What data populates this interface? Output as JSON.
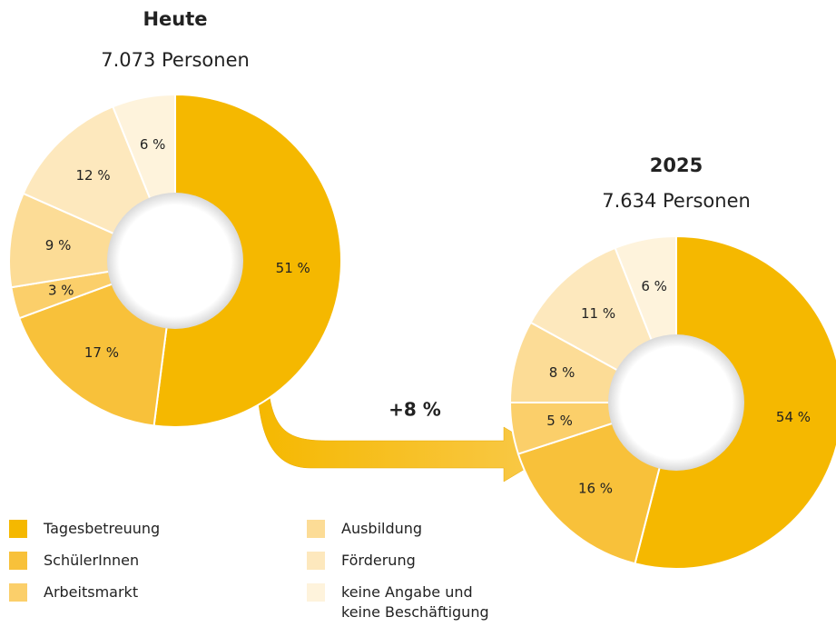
{
  "chart_data": [
    {
      "type": "pie",
      "title": "Heute",
      "subtitle": "7.073 Personen",
      "categories": [
        "Tagesbetreuung",
        "SchülerInnen",
        "Arbeitsmarkt",
        "Ausbildung",
        "Förderung",
        "keine Angabe und keine Beschäftigung"
      ],
      "values": [
        51,
        17,
        3,
        9,
        12,
        6
      ],
      "value_labels": [
        "51 %",
        "17 %",
        "3 %",
        "9 %",
        "12 %",
        "6 %"
      ],
      "colors": [
        "#f5b800",
        "#f8c13a",
        "#fbcf6a",
        "#fcdc96",
        "#fde8bd",
        "#fef3dc"
      ]
    },
    {
      "type": "pie",
      "title": "2025",
      "subtitle": "7.634 Personen",
      "categories": [
        "Tagesbetreuung",
        "SchülerInnen",
        "Arbeitsmarkt",
        "Ausbildung",
        "Förderung",
        "keine Angabe und keine Beschäftigung"
      ],
      "values": [
        54,
        16,
        5,
        8,
        11,
        6
      ],
      "value_labels": [
        "54 %",
        "16 %",
        "5 %",
        "8 %",
        "11 %",
        "6 %"
      ],
      "colors": [
        "#f5b800",
        "#f8c13a",
        "#fbcf6a",
        "#fcdc96",
        "#fde8bd",
        "#fef3dc"
      ]
    }
  ],
  "annotation": "+8 %"
}
